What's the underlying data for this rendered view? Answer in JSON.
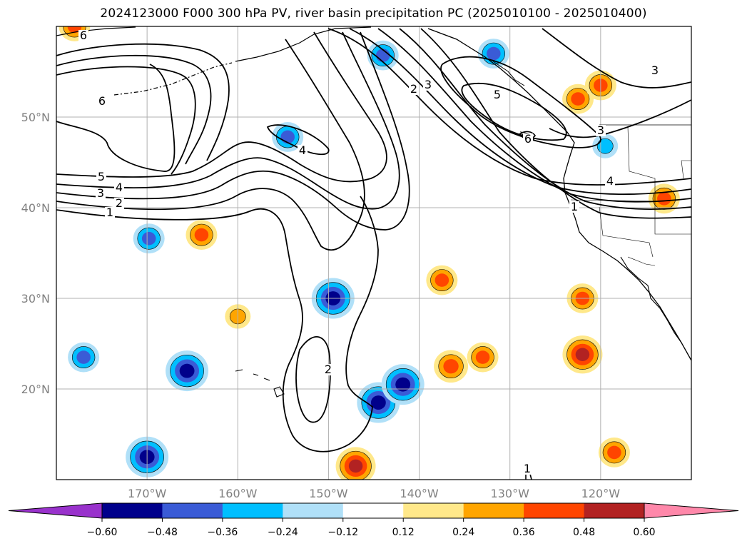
{
  "chart_data": {
    "type": "contour-map",
    "title": "2024123000 F000 300 hPa PV, river basin precipitation PC (2025010100 - 2025010400)",
    "projection": "Plate Carree",
    "xlim": [
      -180,
      -110
    ],
    "ylim": [
      10,
      60
    ],
    "x_ticks": [
      -170,
      -160,
      -150,
      -140,
      -130,
      -120
    ],
    "x_tick_labels": [
      "170°W",
      "160°W",
      "150°W",
      "140°W",
      "130°W",
      "120°W"
    ],
    "y_ticks": [
      20,
      30,
      40,
      50
    ],
    "y_tick_labels": [
      "20°N",
      "30°N",
      "40°N",
      "50°N"
    ],
    "grid": true,
    "pv_contour_labels": [
      "1",
      "2",
      "3",
      "4",
      "5",
      "6"
    ],
    "colorbar": {
      "orientation": "horizontal",
      "extend": "both",
      "ticks": [
        -0.6,
        -0.48,
        -0.36,
        -0.24,
        -0.12,
        0.12,
        0.24,
        0.36,
        0.48,
        0.6
      ],
      "tick_labels": [
        "−0.60",
        "−0.48",
        "−0.36",
        "−0.24",
        "−0.12",
        "0.12",
        "0.24",
        "0.36",
        "0.48",
        "0.60"
      ],
      "colors": [
        "#9932cc",
        "#00008b",
        "#3a5bd6",
        "#00bfff",
        "#b0e0f8",
        "#ffffff",
        "#ffe88a",
        "#ffa500",
        "#ff4500",
        "#b22222",
        "#ff88aa"
      ]
    },
    "precip_blobs": [
      {
        "lon": -169.8,
        "lat": 36.6,
        "value": -0.3
      },
      {
        "lon": -177.0,
        "lat": 23.5,
        "value": -0.3
      },
      {
        "lon": -165.6,
        "lat": 22.0,
        "value": -0.5
      },
      {
        "lon": -170.0,
        "lat": 12.5,
        "value": -0.5
      },
      {
        "lon": -149.5,
        "lat": 30.0,
        "value": -0.5
      },
      {
        "lon": -144.5,
        "lat": 18.5,
        "value": -0.5
      },
      {
        "lon": -141.8,
        "lat": 20.5,
        "value": -0.5
      },
      {
        "lon": -144.0,
        "lat": 56.8,
        "value": -0.3
      },
      {
        "lon": -131.8,
        "lat": 57.0,
        "value": -0.3
      },
      {
        "lon": -154.5,
        "lat": 47.8,
        "value": -0.3
      },
      {
        "lon": -119.5,
        "lat": 46.8,
        "value": -0.2
      },
      {
        "lon": -147.0,
        "lat": 11.5,
        "value": 0.45
      },
      {
        "lon": -137.5,
        "lat": 32.0,
        "value": 0.3
      },
      {
        "lon": -136.5,
        "lat": 22.5,
        "value": 0.35
      },
      {
        "lon": -133.0,
        "lat": 23.5,
        "value": 0.3
      },
      {
        "lon": -122.0,
        "lat": 23.8,
        "value": 0.45
      },
      {
        "lon": -122.0,
        "lat": 30.0,
        "value": 0.3
      },
      {
        "lon": -160.0,
        "lat": 28.0,
        "value": 0.2
      },
      {
        "lon": -164.0,
        "lat": 37.0,
        "value": 0.3
      },
      {
        "lon": -122.5,
        "lat": 52.0,
        "value": 0.3
      },
      {
        "lon": -120.0,
        "lat": 53.5,
        "value": 0.3
      },
      {
        "lon": -113.0,
        "lat": 41.0,
        "value": 0.3
      },
      {
        "lon": -118.5,
        "lat": 13.0,
        "value": 0.3
      },
      {
        "lon": -178.0,
        "lat": 60.0,
        "value": 0.3
      }
    ]
  }
}
